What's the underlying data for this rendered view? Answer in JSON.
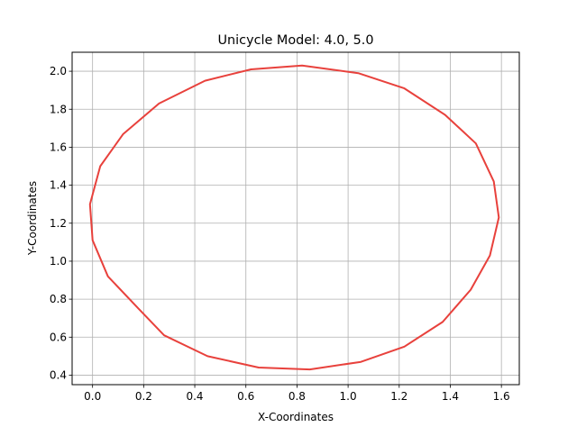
{
  "chart_data": {
    "type": "line",
    "title": "Unicycle Model: 4.0, 5.0",
    "xlabel": "X-Coordinates",
    "ylabel": "Y-Coordinates",
    "xlim": [
      -0.08,
      1.67
    ],
    "ylim": [
      0.35,
      2.1
    ],
    "xticks": [
      0.0,
      0.2,
      0.4,
      0.6,
      0.8,
      1.0,
      1.2,
      1.4,
      1.6
    ],
    "yticks": [
      0.4,
      0.6,
      0.8,
      1.0,
      1.2,
      1.4,
      1.6,
      1.8,
      2.0
    ],
    "grid": true,
    "series": [
      {
        "color": "#e8413c",
        "x": [
          0.0,
          0.06,
          0.18,
          0.28,
          0.45,
          0.65,
          0.85,
          1.05,
          1.22,
          1.37,
          1.48,
          1.555,
          1.59,
          1.57,
          1.5,
          1.38,
          1.22,
          1.04,
          0.82,
          0.62,
          0.44,
          0.26,
          0.12,
          0.03,
          -0.01,
          0.0
        ],
        "y": [
          1.11,
          0.92,
          0.75,
          0.61,
          0.5,
          0.44,
          0.43,
          0.47,
          0.55,
          0.68,
          0.85,
          1.03,
          1.23,
          1.42,
          1.62,
          1.77,
          1.91,
          1.99,
          2.03,
          2.01,
          1.95,
          1.83,
          1.67,
          1.5,
          1.3,
          1.11
        ]
      }
    ],
    "colors": {
      "line": "#e8413c",
      "grid": "#b0b0b0",
      "axes": "#000000"
    }
  }
}
